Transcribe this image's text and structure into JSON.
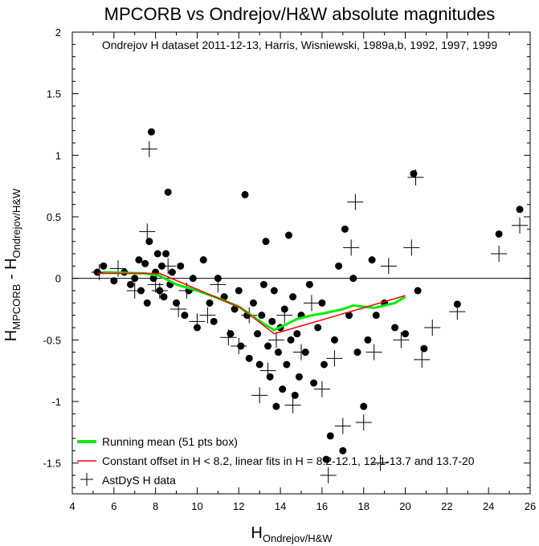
{
  "chart_data": {
    "type": "scatter",
    "title": "MPCORB vs Ondrejov/H&W absolute magnitudes",
    "subtitle": "Ondrejov H dataset 2011-12-13, Harris, Wisniewski, 1989a,b, 1992, 1997, 1999",
    "xlabel": {
      "main": "H",
      "sub": "Ondrejov/H&W"
    },
    "ylabel": {
      "main": "H",
      "sub1": "MPCORB",
      "mid": " - H",
      "sub2": "Ondrejov/H&W"
    },
    "xlim": [
      4,
      26
    ],
    "ylim": [
      -1.75,
      2
    ],
    "xticks": [
      4,
      6,
      8,
      10,
      12,
      14,
      16,
      18,
      20,
      22,
      24,
      26
    ],
    "xticklabels": [
      "4",
      "6",
      "8",
      "10",
      "12",
      "14",
      "16",
      "18",
      "20",
      "22",
      "24",
      "26"
    ],
    "yticks": [
      -1.5,
      -1,
      -0.5,
      0,
      0.5,
      1,
      1.5,
      2
    ],
    "yticklabels": [
      "-1.5",
      "-1",
      "-0.5",
      "0",
      "0.5",
      "1",
      "1.5",
      "2"
    ],
    "zero_line": true,
    "grid": false,
    "legend_position": "bottom-left",
    "legend": [
      {
        "label": "Running mean (51 pts box)",
        "marker": "line",
        "color": "#00ee00"
      },
      {
        "label": "Constant offset in H < 8.2, linear fits in H = 8.2-12.1, 12.1-13.7 and 13.7-20",
        "marker": "line",
        "color": "#ff0000"
      },
      {
        "label": "AstDyS H data",
        "marker": "plus",
        "color": "#000000"
      }
    ],
    "series": [
      {
        "kind": "dots",
        "color": "#000000",
        "points": [
          [
            5.2,
            0.05
          ],
          [
            5.5,
            0.1
          ],
          [
            6.0,
            -0.02
          ],
          [
            6.5,
            0.05
          ],
          [
            6.8,
            -0.05
          ],
          [
            7.0,
            0.0
          ],
          [
            7.2,
            0.15
          ],
          [
            7.3,
            -0.1
          ],
          [
            7.5,
            0.12
          ],
          [
            7.6,
            -0.2
          ],
          [
            7.7,
            0.3
          ],
          [
            7.8,
            1.19
          ],
          [
            7.9,
            0.0
          ],
          [
            8.0,
            0.05
          ],
          [
            8.1,
            0.2
          ],
          [
            8.2,
            -0.1
          ],
          [
            8.3,
            0.1
          ],
          [
            8.4,
            -0.15
          ],
          [
            8.5,
            0.2
          ],
          [
            8.6,
            0.7
          ],
          [
            8.7,
            -0.05
          ],
          [
            8.8,
            0.05
          ],
          [
            9.0,
            -0.2
          ],
          [
            9.2,
            0.1
          ],
          [
            9.4,
            -0.3
          ],
          [
            9.6,
            -0.1
          ],
          [
            9.8,
            0.0
          ],
          [
            10.0,
            -0.4
          ],
          [
            10.3,
            0.15
          ],
          [
            10.6,
            -0.2
          ],
          [
            10.8,
            -0.35
          ],
          [
            11.0,
            0.0
          ],
          [
            11.3,
            -0.15
          ],
          [
            11.6,
            -0.45
          ],
          [
            11.8,
            -0.25
          ],
          [
            12.0,
            -0.1
          ],
          [
            12.1,
            -0.55
          ],
          [
            12.3,
            0.68
          ],
          [
            12.4,
            -0.3
          ],
          [
            12.5,
            -0.65
          ],
          [
            12.7,
            -0.2
          ],
          [
            12.9,
            -0.45
          ],
          [
            13.0,
            -0.7
          ],
          [
            13.1,
            -0.3
          ],
          [
            13.2,
            -0.05
          ],
          [
            13.3,
            0.3
          ],
          [
            13.4,
            -0.55
          ],
          [
            13.5,
            -0.8
          ],
          [
            13.6,
            -0.35
          ],
          [
            13.7,
            -0.1
          ],
          [
            13.8,
            -1.04
          ],
          [
            13.9,
            -0.6
          ],
          [
            14.0,
            -0.4
          ],
          [
            14.1,
            -0.9
          ],
          [
            14.2,
            -0.25
          ],
          [
            14.3,
            -0.7
          ],
          [
            14.4,
            0.35
          ],
          [
            14.5,
            -0.5
          ],
          [
            14.6,
            -0.15
          ],
          [
            14.7,
            -0.95
          ],
          [
            14.8,
            -0.45
          ],
          [
            14.9,
            -0.8
          ],
          [
            15.0,
            -0.3
          ],
          [
            15.2,
            -0.6
          ],
          [
            15.4,
            -0.05
          ],
          [
            15.6,
            -0.85
          ],
          [
            15.8,
            -0.4
          ],
          [
            16.0,
            -0.2
          ],
          [
            16.1,
            -0.7
          ],
          [
            16.2,
            -1.47
          ],
          [
            16.4,
            -1.28
          ],
          [
            16.6,
            -0.5
          ],
          [
            16.8,
            0.1
          ],
          [
            17.0,
            -1.4
          ],
          [
            17.1,
            0.4
          ],
          [
            17.3,
            -0.3
          ],
          [
            17.5,
            0.0
          ],
          [
            17.7,
            -0.6
          ],
          [
            18.0,
            -1.04
          ],
          [
            18.2,
            -0.5
          ],
          [
            18.4,
            0.15
          ],
          [
            18.6,
            -0.3
          ],
          [
            19.0,
            -0.2
          ],
          [
            19.5,
            -0.4
          ],
          [
            20.0,
            -0.45
          ],
          [
            20.4,
            0.85
          ],
          [
            20.6,
            -0.1
          ],
          [
            20.9,
            -0.57
          ],
          [
            22.5,
            -0.21
          ],
          [
            24.5,
            0.36
          ],
          [
            25.5,
            0.56
          ]
        ]
      },
      {
        "kind": "plus",
        "name": "AstDyS H data",
        "color": "#000000",
        "points": [
          [
            5.3,
            0.05
          ],
          [
            6.2,
            0.08
          ],
          [
            7.0,
            -0.1
          ],
          [
            7.6,
            0.38
          ],
          [
            7.7,
            1.05
          ],
          [
            8.0,
            -0.05
          ],
          [
            8.2,
            -0.1
          ],
          [
            8.6,
            0.1
          ],
          [
            9.1,
            -0.25
          ],
          [
            9.5,
            -0.1
          ],
          [
            10.0,
            -0.35
          ],
          [
            10.5,
            -0.3
          ],
          [
            11.0,
            -0.05
          ],
          [
            11.5,
            -0.48
          ],
          [
            12.0,
            -0.55
          ],
          [
            12.5,
            -0.3
          ],
          [
            13.0,
            -0.95
          ],
          [
            13.4,
            -0.75
          ],
          [
            13.8,
            -0.5
          ],
          [
            14.2,
            -0.3
          ],
          [
            14.6,
            -1.03
          ],
          [
            15.0,
            -0.6
          ],
          [
            15.5,
            -0.2
          ],
          [
            16.0,
            -0.9
          ],
          [
            16.3,
            -1.6
          ],
          [
            16.6,
            -0.65
          ],
          [
            17.0,
            -1.2
          ],
          [
            17.4,
            0.25
          ],
          [
            17.6,
            0.62
          ],
          [
            18.0,
            -1.17
          ],
          [
            18.5,
            -0.6
          ],
          [
            18.8,
            -1.5
          ],
          [
            19.2,
            0.1
          ],
          [
            19.8,
            -0.5
          ],
          [
            20.3,
            0.25
          ],
          [
            20.5,
            0.82
          ],
          [
            20.8,
            -0.66
          ],
          [
            21.3,
            -0.4
          ],
          [
            22.5,
            -0.27
          ],
          [
            24.5,
            0.2
          ],
          [
            25.5,
            0.43
          ]
        ]
      },
      {
        "kind": "line",
        "name": "Running mean (51 pts box)",
        "color": "#00ee00",
        "points": [
          [
            5.5,
            0.05
          ],
          [
            7.5,
            0.04
          ],
          [
            8.2,
            0.02
          ],
          [
            9.0,
            -0.05
          ],
          [
            10.0,
            -0.1
          ],
          [
            11.0,
            -0.16
          ],
          [
            12.0,
            -0.23
          ],
          [
            12.6,
            -0.3
          ],
          [
            13.2,
            -0.37
          ],
          [
            13.7,
            -0.42
          ],
          [
            14.2,
            -0.38
          ],
          [
            14.8,
            -0.33
          ],
          [
            15.5,
            -0.3
          ],
          [
            16.2,
            -0.28
          ],
          [
            17.0,
            -0.25
          ],
          [
            17.5,
            -0.22
          ],
          [
            18.5,
            -0.24
          ],
          [
            19.5,
            -0.2
          ],
          [
            20.0,
            -0.15
          ]
        ]
      },
      {
        "kind": "line",
        "name": "Constant offset in H < 8.2, linear fits in H = 8.2-12.1, 12.1-13.7 and 13.7-20",
        "color": "#ff0000",
        "points": [
          [
            5.2,
            0.04
          ],
          [
            8.2,
            0.04
          ],
          [
            12.1,
            -0.24
          ],
          [
            13.7,
            -0.45
          ],
          [
            20.0,
            -0.14
          ]
        ]
      }
    ]
  }
}
